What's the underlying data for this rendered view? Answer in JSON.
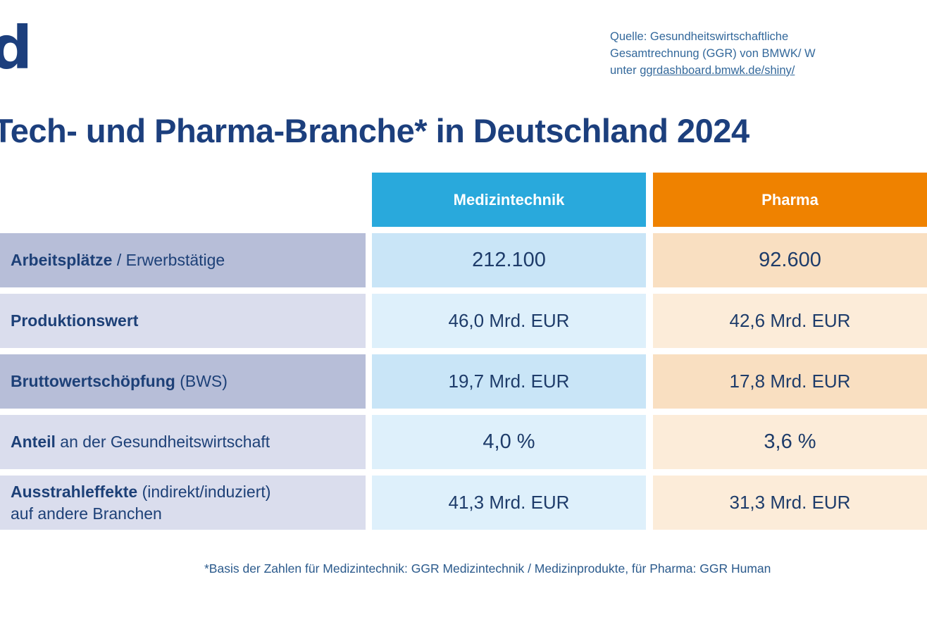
{
  "logo": {
    "text": "d"
  },
  "source": {
    "line1": "Quelle: Gesundheitswirtschaftliche",
    "line2": "Gesamtrechnung (GGR) von BMWK/ W",
    "line3_prefix": "unter ",
    "line3_link": "ggrdashboard.bmwk.de/shiny/"
  },
  "title": "Tech- und Pharma-Branche* in Deutschland 2024",
  "table": {
    "columns": [
      {
        "label": "Medizintechnik",
        "color": "#29a9dc"
      },
      {
        "label": "Pharma",
        "color": "#ef8200"
      }
    ],
    "rows": [
      {
        "label_bold": "Arbeitsplätze",
        "label_rest": " / Erwerbstätige",
        "label_line2": "",
        "med": "212.100",
        "pharma": "92.600"
      },
      {
        "label_bold": "Produktionswert",
        "label_rest": "",
        "label_line2": "",
        "med": "46,0 Mrd. EUR",
        "pharma": "42,6 Mrd. EUR"
      },
      {
        "label_bold": "Bruttowertschöpfung",
        "label_rest": " (BWS)",
        "label_line2": "",
        "med": "19,7 Mrd. EUR",
        "pharma": "17,8 Mrd. EUR"
      },
      {
        "label_bold": "Anteil",
        "label_rest": " an der Gesundheitswirtschaft",
        "label_line2": "",
        "med": "4,0 %",
        "pharma": "3,6 %"
      },
      {
        "label_bold": "Ausstrahleffekte",
        "label_rest": " (indirekt/induziert)",
        "label_line2": "auf andere Branchen",
        "med": "41,3 Mrd. EUR",
        "pharma": "31,3 Mrd. EUR"
      }
    ]
  },
  "footnote": "*Basis der Zahlen für Medizintechnik: GGR Medizintechnik / Medizinprodukte, für Pharma: GGR Human",
  "colors": {
    "headline_navy": "#1c3f7d",
    "header_cyan": "#29a9dc",
    "header_orange": "#ef8200",
    "label_dark": "#b7bed8",
    "label_light": "#dadded",
    "blue_cell_dark": "#c9e5f7",
    "blue_cell_light": "#def0fb",
    "orange_cell_dark": "#f9dfc1",
    "orange_cell_light": "#fcecd9",
    "cell_text": "#1e3c6a",
    "source_text": "#33689b"
  },
  "chart_data": {
    "type": "table",
    "title": "Tech- und Pharma-Branche* in Deutschland 2024",
    "columns": [
      "Medizintechnik",
      "Pharma"
    ],
    "rows": [
      {
        "label": "Arbeitsplätze / Erwerbstätige",
        "Medizintechnik": "212.100",
        "Pharma": "92.600"
      },
      {
        "label": "Produktionswert",
        "Medizintechnik": "46,0 Mrd. EUR",
        "Pharma": "42,6 Mrd. EUR"
      },
      {
        "label": "Bruttowertschöpfung (BWS)",
        "Medizintechnik": "19,7 Mrd. EUR",
        "Pharma": "17,8 Mrd. EUR"
      },
      {
        "label": "Anteil an der Gesundheitswirtschaft",
        "Medizintechnik": "4,0 %",
        "Pharma": "3,6 %"
      },
      {
        "label": "Ausstrahleffekte (indirekt/induziert) auf andere Branchen",
        "Medizintechnik": "41,3 Mrd. EUR",
        "Pharma": "31,3 Mrd. EUR"
      }
    ]
  }
}
